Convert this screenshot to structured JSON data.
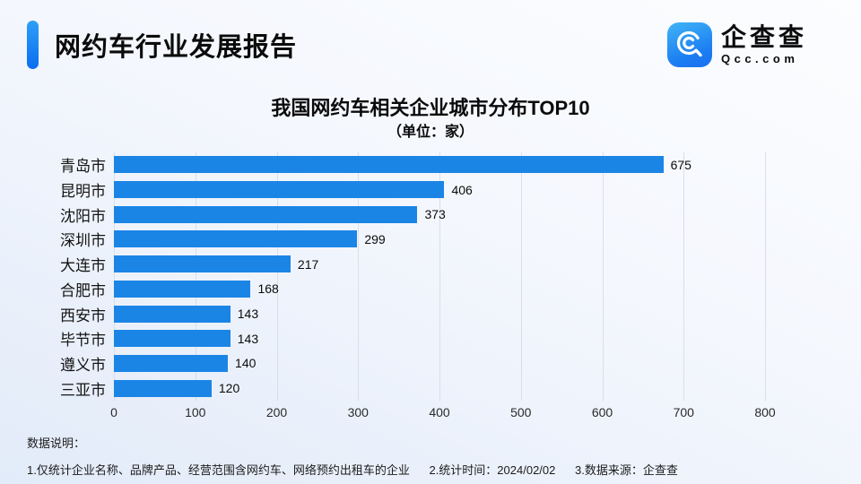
{
  "page": {
    "header": {
      "title": "网约车行业发展报告"
    },
    "logo": {
      "name_cn": "企查查",
      "name_en": "Qcc.com",
      "icon": "qcc-magnifier-icon"
    },
    "notes": {
      "label": "数据说明：",
      "items": [
        "1.仅统计企业名称、品牌产品、经营范围含网约车、网络预约出租车的企业",
        "2.统计时间：2024/02/02",
        "3.数据来源：企查查"
      ]
    }
  },
  "colors": {
    "bar": "#1b85e6",
    "accent_top": "#2e9ff7",
    "accent_bottom": "#0a6ef0",
    "gridline": "#d9dfe9"
  },
  "chart_data": {
    "type": "bar",
    "orientation": "horizontal",
    "title": "我国网约车相关企业城市分布TOP10",
    "subtitle": "（单位：家）",
    "categories": [
      "青岛市",
      "昆明市",
      "沈阳市",
      "深圳市",
      "大连市",
      "合肥市",
      "西安市",
      "毕节市",
      "遵义市",
      "三亚市"
    ],
    "values": [
      675,
      406,
      373,
      299,
      217,
      168,
      143,
      143,
      140,
      120
    ],
    "xlim": [
      0,
      800
    ],
    "xticks": [
      0,
      100,
      200,
      300,
      400,
      500,
      600,
      700,
      800
    ],
    "grid": true,
    "legend": "none",
    "value_labels": "outside-end"
  }
}
